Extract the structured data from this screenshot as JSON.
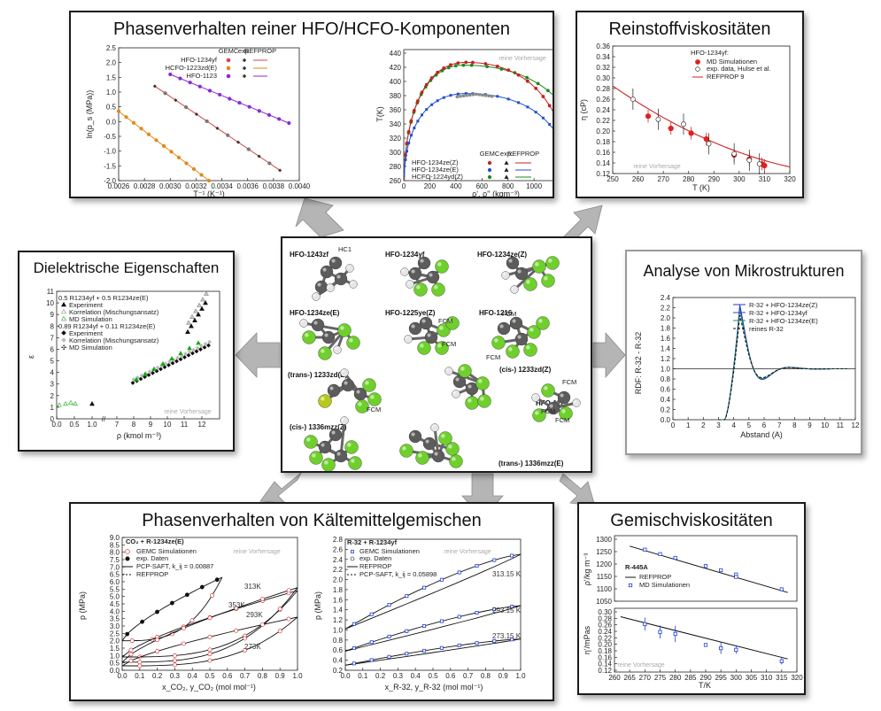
{
  "arrow_color": "#b5b5b5",
  "center": {
    "molecules": [
      "HFO-1243zf",
      "HFO-1234yf",
      "HFO-1234ze(Z)",
      "HFO-1234ze(E)",
      "HFO-1225ye(Z)",
      "HFO-1216",
      "(trans-) 1233zd(E)",
      "(cis-) 1233zd(Z)",
      "HFO-1123",
      "(cis-) 1336mzz(Z)",
      "(trans-) 1336mzz(E)"
    ],
    "site_labels": [
      "HC1",
      "FCM",
      "FCM",
      "FCM",
      "FCM",
      "FCM",
      "FCM",
      "FCM",
      "FCM"
    ]
  },
  "panels": {
    "phase_pure": {
      "title": "Phasenverhalten reiner HFO/HCFO-Komponenten",
      "left": {
        "ylabel": "ln(p_s (MPa))",
        "xlabel": "T⁻¹ (K⁻¹)",
        "legend_header": [
          "GEMC",
          "exp.",
          "REFPROP"
        ],
        "series": [
          "HFO-1234yf",
          "HCFO-1223zd(E)",
          "HFO-1123"
        ],
        "xticks": [
          "0.0026",
          "0.0028",
          "0.0030",
          "0.0032",
          "0.0034",
          "0.0036",
          "0.0038",
          "0.0040"
        ],
        "yticks": [
          "2.5",
          "2.0",
          "1.5",
          "1.0",
          "0.5",
          "0.0",
          "-0.5",
          "-1.0",
          "-1.5",
          "-2.0"
        ]
      },
      "right": {
        "ylabel": "T(K)",
        "xlabel": "ρ', ρ'' (kgm⁻³)",
        "note": "reine Vorhersage",
        "legend_header": [
          "GEMC",
          "exp.",
          "REFPROP"
        ],
        "series": [
          "HFO-1234ze(Z)",
          "HFO-1234ze(E)",
          "HCFO-1224yd(Z)"
        ],
        "xticks": [
          "0",
          "200",
          "400",
          "600",
          "800",
          "1000",
          "1200",
          "1400"
        ],
        "yticks": [
          "260",
          "280",
          "300",
          "320",
          "340",
          "360",
          "380",
          "400",
          "420",
          "440"
        ]
      }
    },
    "pure_visc": {
      "title": "Reinstoffviskositäten",
      "header": "HFO-1234yf:",
      "legend": [
        "MD Simulationen",
        "exp. data, Hulse et al.",
        "REFPROP 9"
      ],
      "ylabel": "η (cP)",
      "xlabel": "T (K)",
      "note": "reine Vorhersage",
      "xticks": [
        "250",
        "260",
        "270",
        "280",
        "290",
        "300",
        "310",
        "320"
      ],
      "yticks": [
        "0.36",
        "0.34",
        "0.32",
        "0.30",
        "0.28",
        "0.26",
        "0.24",
        "0.22",
        "0.20",
        "0.18",
        "0.16",
        "0.14",
        "0.12"
      ]
    },
    "dielectric": {
      "title": "Dielektrische Eigenschaften",
      "legend": [
        "0.5 R1234yf + 0.5 R1234ze(E)",
        "Experiment",
        "Korrelation (Mischungsansatz)",
        "MD Simulation",
        "0.89 R1234yf + 0.11 R1234ze(E)",
        "Experiment",
        "Korrelation (Mischungsansatz)",
        "MD Simulation"
      ],
      "ylabel": "ε",
      "xlabel": "ρ (kmol m⁻³)",
      "note": "reine Vorhersage",
      "xticks": [
        "0.0",
        "0.5",
        "1.0",
        "7",
        "8",
        "9",
        "10",
        "11",
        "12"
      ],
      "yticks": [
        "11",
        "10",
        "9",
        "8",
        "7",
        "6",
        "5",
        "4",
        "3",
        "2",
        "1",
        "0"
      ]
    },
    "microstructure": {
      "title": "Analyse von Mikrostrukturen",
      "legend": [
        "R-32 + HFO-1234ze(Z)",
        "R-32 + HFO-1234yf",
        "R-32 + HFO-1234ze(E)",
        "reines R-32"
      ],
      "ylabel": "RDF: R-32 - R-32",
      "xlabel": "Abstand (A)",
      "xticks": [
        "0",
        "1",
        "2",
        "3",
        "4",
        "5",
        "6",
        "7",
        "8",
        "9",
        "10",
        "11",
        "12"
      ],
      "yticks": [
        "2.4",
        "2.2",
        "2.0",
        "1.8",
        "1.6",
        "1.4",
        "1.2",
        "1.0",
        "0.8",
        "0.6",
        "0.4",
        "0.2",
        "0.0"
      ]
    },
    "mixture_phase": {
      "title": "Phasenverhalten von Kältemittelgemischen",
      "left": {
        "header": "CO₂ + R-1234ze(E)",
        "legend": [
          "GEMC Simulationen",
          "exp. Daten",
          "PCP-SAFT, k_ij = 0.00887",
          "REFPROP"
        ],
        "note": "reine Vorhersage",
        "curve_labels": [
          "313K",
          "353K",
          "293K",
          "273K"
        ],
        "ylabel": "p (MPa)",
        "xlabel": "x_CO₂, y_CO₂ (mol mol⁻¹)",
        "xticks": [
          "0.0",
          "0.1",
          "0.2",
          "0.3",
          "0.4",
          "0.5",
          "0.6",
          "0.7",
          "0.8",
          "0.9",
          "1.0"
        ],
        "yticks": [
          "9.0",
          "8.5",
          "8.0",
          "7.5",
          "7.0",
          "6.5",
          "6.0",
          "5.5",
          "5.0",
          "4.5",
          "4.0",
          "3.5",
          "3.0",
          "2.5",
          "2.0",
          "1.5",
          "1.0",
          "0.5",
          "0.0"
        ]
      },
      "right": {
        "header": "R-32 + R-1234yf",
        "legend": [
          "GEMC Simulationen",
          "exp. Daten",
          "REFPROP",
          "PCP-SAFT, k_ij = 0.05898"
        ],
        "note": "reine Vorhersage",
        "curve_labels": [
          "313.15 K",
          "293.15 K",
          "273.15 K"
        ],
        "ylabel": "p (MPa)",
        "xlabel": "x_R-32, y_R-32 (mol mol⁻¹)",
        "xticks": [
          "0.0",
          "0.1",
          "0.2",
          "0.3",
          "0.4",
          "0.5",
          "0.6",
          "0.7",
          "0.8",
          "0.9",
          "1.0"
        ],
        "yticks": [
          "2.8",
          "2.6",
          "2.4",
          "2.2",
          "2.0",
          "1.8",
          "1.6",
          "1.4",
          "1.2",
          "1.0",
          "0.8",
          "0.6",
          "0.4",
          "0.2"
        ]
      }
    },
    "mix_visc": {
      "title": "Gemischviskositäten",
      "header": "R-445A",
      "legend": [
        "REFPROP",
        "MD Simulationen"
      ],
      "top_ylabel": "ρ'/kg m⁻³",
      "top_yticks": [
        "1300",
        "1250",
        "1200",
        "1150",
        "1100",
        "1050"
      ],
      "bottom_ylabel": "η'/mPas",
      "bottom_yticks": [
        "0.30",
        "0.28",
        "0.26",
        "0.24",
        "0.22",
        "0.20",
        "0.18",
        "0.16",
        "0.14",
        "0.12"
      ],
      "xlabel": "T/K",
      "note": "reine Vorhersage",
      "xticks": [
        "260",
        "265",
        "270",
        "275",
        "280",
        "285",
        "290",
        "295",
        "300",
        "305",
        "310",
        "315",
        "320"
      ]
    }
  }
}
